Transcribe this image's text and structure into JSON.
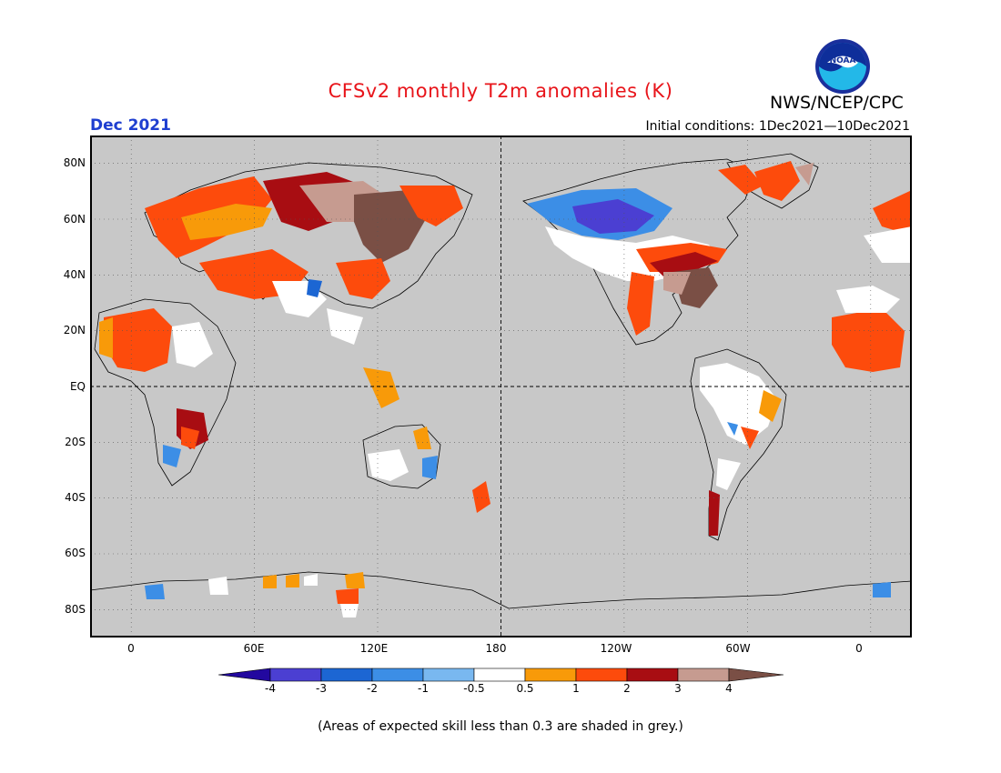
{
  "title": "CFSv2 monthly T2m anomalies (K)",
  "organization": "NWS/NCEP/CPC",
  "logo_text": "NOAA",
  "forecast_month": "Dec 2021",
  "initial_conditions": "Initial conditions: 1Dec2021—10Dec2021",
  "footnote": "(Areas of expected skill less than 0.3 are shaded in grey.)",
  "map": {
    "projection": "equirectangular",
    "lon_range": [
      -20,
      380
    ],
    "lat_range": [
      -90,
      90
    ],
    "background_color": "#c8c8c8",
    "coast_color": "#000000",
    "lat_labels": [
      "80N",
      "60N",
      "40N",
      "20N",
      "EQ",
      "20S",
      "40S",
      "60S",
      "80S"
    ],
    "lon_labels": [
      "0",
      "60E",
      "120E",
      "180",
      "120W",
      "60W",
      "0"
    ],
    "lat_values": [
      80,
      60,
      40,
      20,
      0,
      -20,
      -40,
      -60,
      -80
    ],
    "lon_values": [
      0,
      60,
      120,
      180,
      240,
      300,
      360
    ]
  },
  "colorbar": {
    "labels": [
      "-4",
      "-3",
      "-2",
      "-1",
      "-0.5",
      "0.5",
      "1",
      "2",
      "3",
      "4"
    ],
    "colors": [
      "#22089f",
      "#4b3fd2",
      "#1c66d3",
      "#3c8ee6",
      "#79b8f0",
      "#ffffff",
      "#f89a09",
      "#fd4b0c",
      "#a80d12",
      "#c69b90",
      "#7a4f45"
    ]
  },
  "anomaly_regions": [
    {
      "name": "Western Canada / Alaska",
      "level": "-3",
      "color": "#4b3fd2"
    },
    {
      "name": "North Pacific coast",
      "level": "-1",
      "color": "#3c8ee6"
    },
    {
      "name": "Eastern United States",
      "level": "4",
      "color": "#7a4f45"
    },
    {
      "name": "Central United States band",
      "level": "3",
      "color": "#a80d12"
    },
    {
      "name": "Siberia",
      "level": "4",
      "color": "#7a4f45"
    },
    {
      "name": "Central Russia",
      "level": "3",
      "color": "#a80d12"
    },
    {
      "name": "Kazakhstan / Central Asia",
      "level": "1",
      "color": "#f89a09"
    },
    {
      "name": "Sahara / North Africa",
      "level": "2",
      "color": "#fd4b0c"
    },
    {
      "name": "Southern Africa",
      "level": "3",
      "color": "#a80d12"
    },
    {
      "name": "Tibetan Plateau",
      "level": "-2",
      "color": "#1c66d3"
    },
    {
      "name": "Patagonia",
      "level": "3",
      "color": "#a80d12"
    },
    {
      "name": "Antarctica coast",
      "level": "1",
      "color": "#f89a09"
    }
  ]
}
